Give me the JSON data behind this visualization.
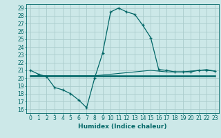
{
  "xlabel": "Humidex (Indice chaleur)",
  "background_color": "#cce8e8",
  "grid_color": "#aacccc",
  "line_color": "#006666",
  "xlim": [
    -0.5,
    23.5
  ],
  "ylim": [
    15.5,
    29.5
  ],
  "yticks": [
    16,
    17,
    18,
    19,
    20,
    21,
    22,
    23,
    24,
    25,
    26,
    27,
    28,
    29
  ],
  "xticks": [
    0,
    1,
    2,
    3,
    4,
    5,
    6,
    7,
    8,
    9,
    10,
    11,
    12,
    13,
    14,
    15,
    16,
    17,
    18,
    19,
    20,
    21,
    22,
    23
  ],
  "line1_x": [
    0,
    1,
    2,
    3,
    4,
    5,
    6,
    7,
    8,
    9,
    10,
    11,
    12,
    13,
    14,
    15,
    16,
    17,
    18,
    19,
    20,
    21,
    22,
    23
  ],
  "line1_y": [
    21.0,
    20.5,
    20.2,
    18.8,
    18.5,
    18.0,
    17.2,
    16.2,
    20.0,
    23.2,
    28.5,
    29.0,
    28.5,
    28.2,
    26.8,
    25.2,
    21.1,
    21.0,
    20.8,
    20.8,
    20.8,
    21.0,
    21.0,
    20.9
  ],
  "line2_x": [
    0,
    1,
    2,
    3,
    4,
    5,
    6,
    7,
    8,
    9,
    10,
    11,
    12,
    13,
    14,
    15,
    16,
    17,
    18,
    19,
    20,
    21,
    22,
    23
  ],
  "line2_y": [
    20.3,
    20.3,
    20.3,
    20.3,
    20.3,
    20.3,
    20.3,
    20.3,
    20.3,
    20.3,
    20.3,
    20.3,
    20.3,
    20.3,
    20.3,
    20.3,
    20.3,
    20.3,
    20.3,
    20.3,
    20.3,
    20.3,
    20.3,
    20.3
  ],
  "line3_x": [
    0,
    1,
    2,
    3,
    4,
    5,
    6,
    7,
    8,
    9,
    10,
    11,
    12,
    13,
    14,
    15,
    16,
    17,
    18,
    19,
    20,
    21,
    22,
    23
  ],
  "line3_y": [
    20.3,
    20.3,
    20.3,
    20.3,
    20.3,
    20.3,
    20.3,
    20.3,
    20.3,
    20.4,
    20.5,
    20.6,
    20.7,
    20.8,
    20.9,
    21.0,
    20.9,
    20.8,
    20.8,
    20.8,
    20.9,
    21.0,
    21.1,
    20.9
  ]
}
